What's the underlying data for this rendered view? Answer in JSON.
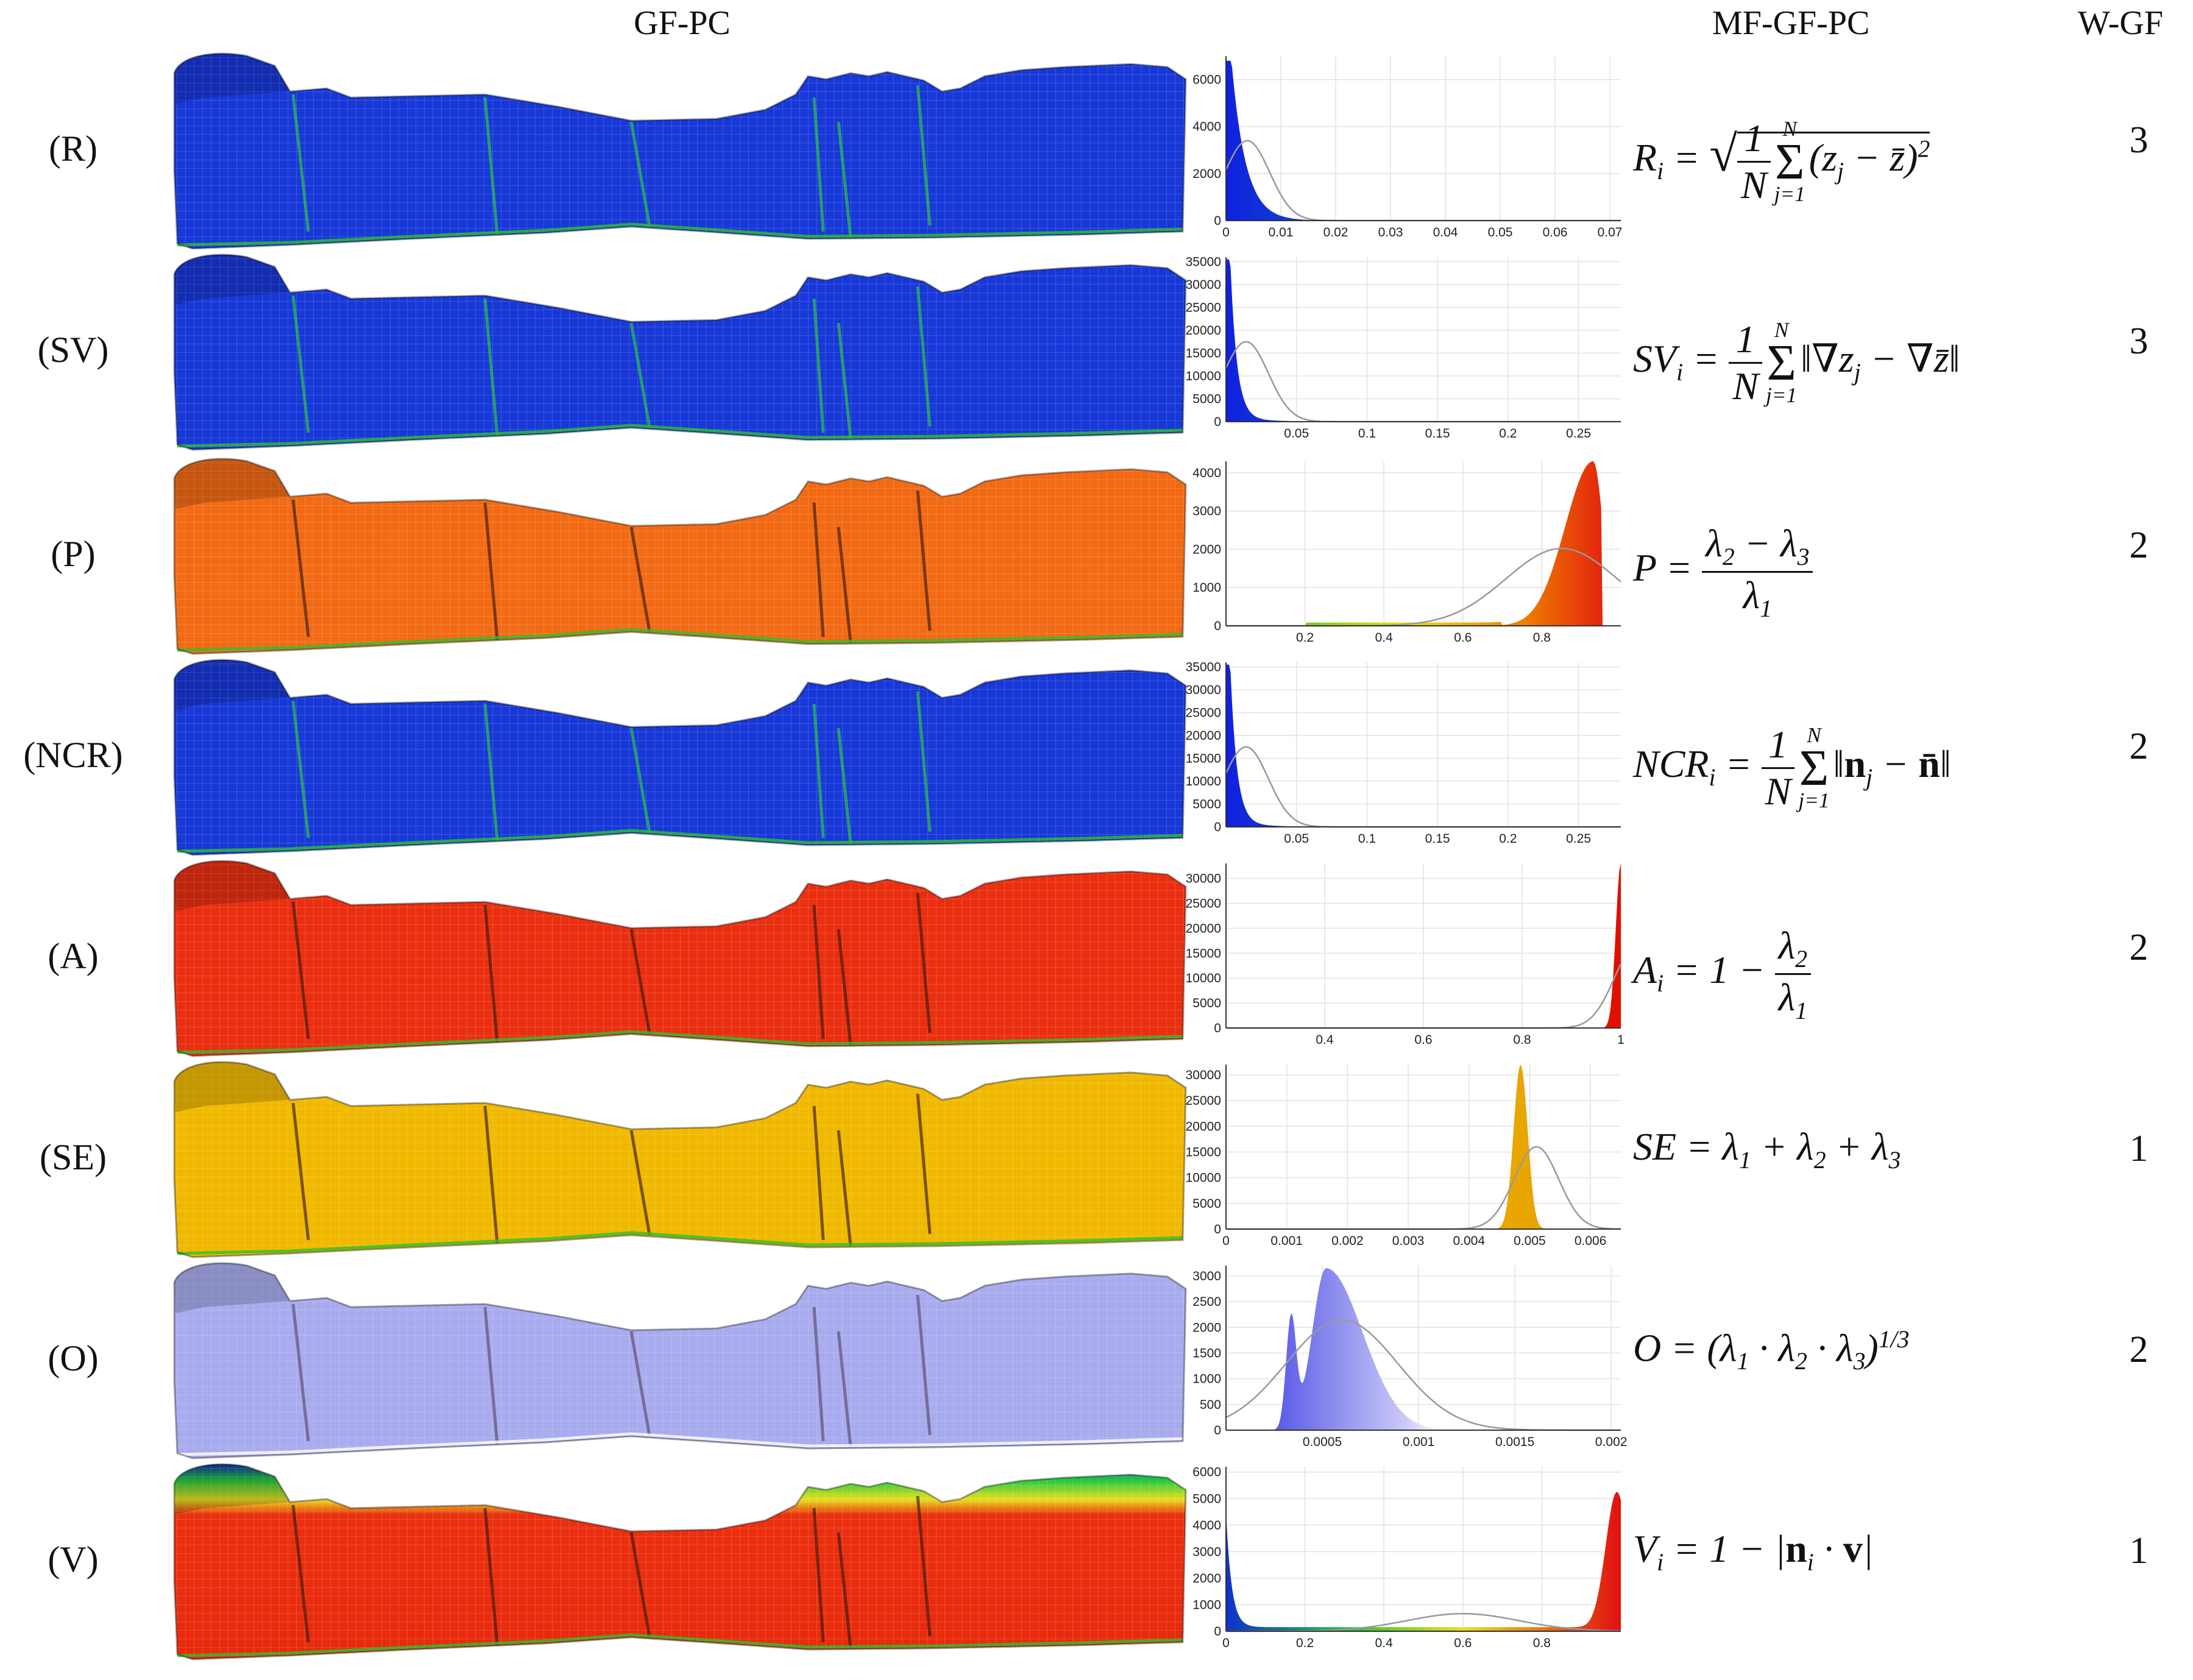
{
  "headers": {
    "cloud": "GF-PC",
    "formula": "MF-GF-PC",
    "weight": "W-GF"
  },
  "colors": {
    "blue": "#1838d8",
    "red": "#ea2f10",
    "orange": "#f26a14",
    "yellow": "#f0b900",
    "lavender": "#a8acee",
    "green": "#2ec030"
  },
  "rows": [
    {
      "label": "(R)",
      "weight": "3",
      "formula": "Ri = sqrt( (1/N) Σ_{j=1..N} (zj − z̄)² )",
      "cloud_style": "blue"
    },
    {
      "label": "(SV)",
      "weight": "3",
      "formula": "SVi = (1/N) Σ_{j=1..N} ‖∇zj − ∇z̄‖",
      "cloud_style": "blue"
    },
    {
      "label": "(P)",
      "weight": "2",
      "formula": "P = (λ2 − λ3) / λ1",
      "cloud_style": "orange"
    },
    {
      "label": "(NCR)",
      "weight": "2",
      "formula": "NCRi = (1/N) Σ_{j=1..N} ‖nj − n̄‖",
      "cloud_style": "blue"
    },
    {
      "label": "(A)",
      "weight": "2",
      "formula": "Ai = 1 − λ2/λ1",
      "cloud_style": "red"
    },
    {
      "label": "(SE)",
      "weight": "1",
      "formula": "SE = λ1 + λ2 + λ3",
      "cloud_style": "yellow"
    },
    {
      "label": "(O)",
      "weight": "2",
      "formula": "O = (λ1 · λ2 · λ3)^(1/3)",
      "cloud_style": "lavender"
    },
    {
      "label": "(V)",
      "weight": "1",
      "formula": "Vi = 1 − |ni · v|",
      "cloud_style": "verticality"
    }
  ],
  "chart_data": [
    {
      "type": "histogram",
      "feature": "R",
      "y_ticks": [
        "0",
        "2000",
        "4000",
        "6000"
      ],
      "ylim": [
        0,
        7000
      ],
      "x_ticks": [
        "0",
        "0.01",
        "0.02",
        "0.03",
        "0.04",
        "0.05",
        "0.06",
        "0.07"
      ],
      "xlim": [
        0,
        0.072
      ],
      "peak_x": 0.001,
      "peak_y": 6800,
      "colormap": "blue-green"
    },
    {
      "type": "histogram",
      "feature": "SV",
      "y_ticks": [
        "0",
        "5000",
        "10000",
        "15000",
        "20000",
        "25000",
        "30000",
        "35000"
      ],
      "ylim": [
        0,
        36000
      ],
      "x_ticks": [
        "0.05",
        "0.1",
        "0.15",
        "0.2",
        "0.25"
      ],
      "xlim": [
        0,
        0.28
      ],
      "peak_x": 0.003,
      "peak_y": 35000,
      "colormap": "blue-green"
    },
    {
      "type": "histogram",
      "feature": "P",
      "y_ticks": [
        "0",
        "1000",
        "2000",
        "3000",
        "4000"
      ],
      "ylim": [
        0,
        4300
      ],
      "x_ticks": [
        "0.2",
        "0.4",
        "0.6",
        "0.8"
      ],
      "xlim": [
        0,
        1
      ],
      "peak_x": 0.93,
      "peak_y": 4300,
      "colormap": "green-yellow-red"
    },
    {
      "type": "histogram",
      "feature": "NCR",
      "y_ticks": [
        "0",
        "5000",
        "10000",
        "15000",
        "20000",
        "25000",
        "30000",
        "35000"
      ],
      "ylim": [
        0,
        36000
      ],
      "x_ticks": [
        "0.05",
        "0.1",
        "0.15",
        "0.2",
        "0.25"
      ],
      "xlim": [
        0,
        0.28
      ],
      "peak_x": 0.003,
      "peak_y": 35000,
      "colormap": "blue-green"
    },
    {
      "type": "histogram",
      "feature": "A",
      "y_ticks": [
        "0",
        "5000",
        "10000",
        "15000",
        "20000",
        "25000",
        "30000"
      ],
      "ylim": [
        0,
        33000
      ],
      "x_ticks": [
        "0.4",
        "0.6",
        "0.8",
        "1"
      ],
      "xlim": [
        0.2,
        1
      ],
      "peak_x": 1.0,
      "peak_y": 33000,
      "colormap": "red"
    },
    {
      "type": "histogram",
      "feature": "SE",
      "y_ticks": [
        "0",
        "5000",
        "10000",
        "15000",
        "20000",
        "25000",
        "30000"
      ],
      "ylim": [
        0,
        32000
      ],
      "x_ticks": [
        "0",
        "0.001",
        "0.002",
        "0.003",
        "0.004",
        "0.005",
        "0.006"
      ],
      "xlim": [
        0,
        0.0065
      ],
      "peak_x": 0.00485,
      "peak_y": 32000,
      "colormap": "yellow"
    },
    {
      "type": "histogram",
      "feature": "O",
      "y_ticks": [
        "0",
        "500",
        "1000",
        "1500",
        "2000",
        "2500",
        "3000"
      ],
      "ylim": [
        0,
        3200
      ],
      "x_ticks": [
        "0.0005",
        "0.001",
        "0.0015",
        "0.002"
      ],
      "xlim": [
        0,
        0.00205
      ],
      "peak_x": 0.00052,
      "peak_y": 3150,
      "colormap": "blue-white-red"
    },
    {
      "type": "histogram",
      "feature": "V",
      "y_ticks": [
        "0",
        "1000",
        "2000",
        "3000",
        "4000",
        "5000",
        "6000"
      ],
      "ylim": [
        0,
        6200
      ],
      "x_ticks": [
        "0",
        "0.2",
        "0.4",
        "0.6",
        "0.8"
      ],
      "xlim": [
        0,
        1
      ],
      "peak_x": 0.99,
      "peak_y": 5100,
      "colormap": "blue-green-red"
    }
  ]
}
